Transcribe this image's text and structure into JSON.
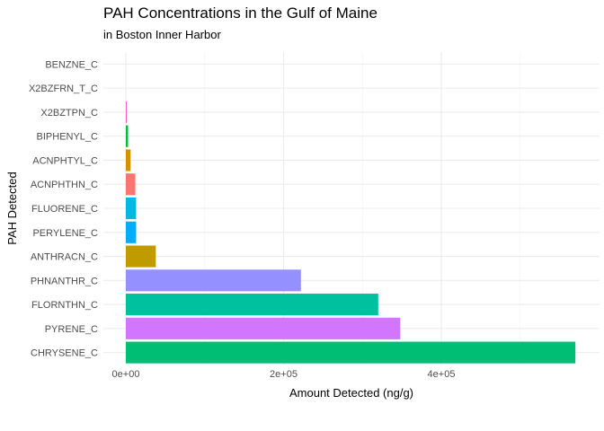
{
  "title": "PAH Concentrations in the Gulf of Maine",
  "subtitle": "in Boston Inner Harbor",
  "chart_data": {
    "type": "bar",
    "orientation": "horizontal",
    "title": "PAH Concentrations in the Gulf of Maine",
    "subtitle": "in Boston Inner Harbor",
    "xlabel": "Amount Detected (ng/g)",
    "ylabel": "PAH Detected",
    "xlim": [
      0,
      570000
    ],
    "x_ticks": [
      0,
      200000,
      400000
    ],
    "x_tick_labels": [
      "0e+00",
      "2e+05",
      "4e+05"
    ],
    "grid": true,
    "legend": "none",
    "categories": [
      "BENZNE_C",
      "X2BZFRN_T_C",
      "X2BZTPN_C",
      "BIPHENYL_C",
      "ACNPHTYL_C",
      "ACNPHTHN_C",
      "FLUORENE_C",
      "PERYLENE_C",
      "ANTHRACN_C",
      "PHNANTHR_C",
      "FLORNTHN_C",
      "PYRENE_C",
      "CHRYSENE_C"
    ],
    "values": [
      0,
      0,
      1200,
      2800,
      6000,
      12000,
      13000,
      13000,
      38000,
      222000,
      320000,
      348000,
      572000
    ],
    "colors": [
      "#FF61C3",
      "#DB72FB",
      "#FF61C3",
      "#00BA38",
      "#D39200",
      "#F8766D",
      "#00B9E3",
      "#00ADFA",
      "#C09B00",
      "#9590FF",
      "#00C19F",
      "#D376FF",
      "#00BF74"
    ]
  }
}
